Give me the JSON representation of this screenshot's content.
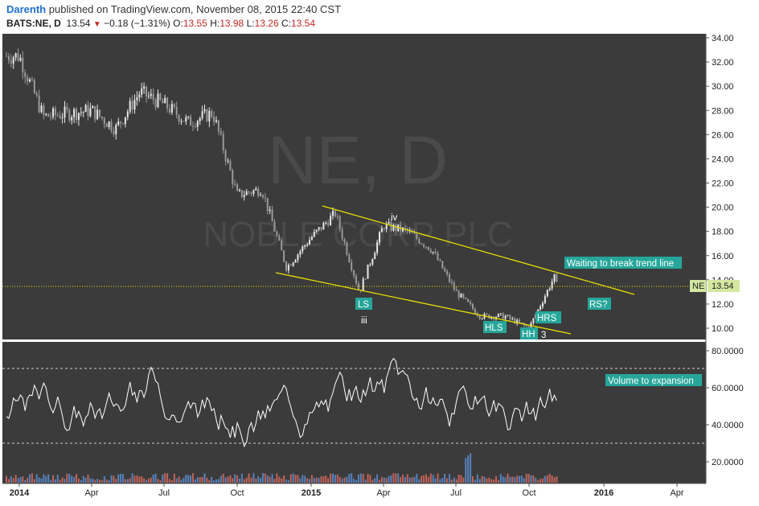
{
  "header": {
    "author": "Darenth",
    "published_text": "published on TradingView.com, November 08, 2015 22:40 CST",
    "symbol": "BATS:NE, D",
    "last": "13.54",
    "change": "−0.18 (−1.31%)",
    "o_label": "O:",
    "o_value": "13.55",
    "h_label": "H:",
    "h_value": "13.98",
    "l_label": "L:",
    "l_value": "13.26",
    "c_label": "C:",
    "c_value": "13.54"
  },
  "watermark": {
    "line1": "NE, D",
    "line2": "NOBLE CORP PLC"
  },
  "price_tag": {
    "symbol": "NE",
    "value": "13.54"
  },
  "colors": {
    "panel_bg": "#3b3b3b",
    "trend": "#e8e000",
    "price": "#d9d9d9",
    "label_bg": "#26a69a",
    "volume": "#5c8fd6"
  },
  "chart_data": [
    {
      "type": "candlestick",
      "title": "",
      "x_ticks": [
        "2014",
        "Apr",
        "Jul",
        "Oct",
        "2015",
        "Apr",
        "Jul",
        "Oct",
        "2016",
        "Apr"
      ],
      "y_ticks": [
        "34.00",
        "32.00",
        "30.00",
        "28.00",
        "26.00",
        "24.00",
        "22.00",
        "20.00",
        "18.00",
        "16.00",
        "14.00",
        "12.00",
        "10.00"
      ],
      "ylim": [
        9,
        34.3
      ],
      "last_price": 13.54,
      "approx_path": [
        {
          "x": "2014-01",
          "y": 32.5
        },
        {
          "x": "2014-02",
          "y": 27.5
        },
        {
          "x": "2014-04",
          "y": 28.0
        },
        {
          "x": "2014-05",
          "y": 26.5
        },
        {
          "x": "2014-06",
          "y": 29.5
        },
        {
          "x": "2014-07",
          "y": 28.5
        },
        {
          "x": "2014-08",
          "y": 27.0
        },
        {
          "x": "2014-09",
          "y": 27.8
        },
        {
          "x": "2014-10",
          "y": 21.0
        },
        {
          "x": "2014-11",
          "y": 21.5
        },
        {
          "x": "2014-12",
          "y": 15.0
        },
        {
          "x": "2015-01",
          "y": 17.5
        },
        {
          "x": "2015-02",
          "y": 19.5
        },
        {
          "x": "2015-03",
          "y": 13.0
        },
        {
          "x": "2015-04",
          "y": 18.5
        },
        {
          "x": "2015-05",
          "y": 18.0
        },
        {
          "x": "2015-06",
          "y": 16.5
        },
        {
          "x": "2015-07",
          "y": 13.0
        },
        {
          "x": "2015-08",
          "y": 11.0
        },
        {
          "x": "2015-09",
          "y": 11.0
        },
        {
          "x": "2015-10",
          "y": 10.0
        },
        {
          "x": "2015-11",
          "y": 14.2
        }
      ],
      "annotations": [
        "Waiting to break trend line",
        "LS",
        "HLS",
        "HH",
        "HRS",
        "RS?"
      ],
      "wave_labels": [
        "iv",
        "iii",
        "3"
      ]
    },
    {
      "type": "line",
      "title": "",
      "y_ticks": [
        "80.0000",
        "60.0000",
        "40.0000",
        "20.0000"
      ],
      "ylim": [
        10,
        84
      ],
      "levels": [
        70,
        30
      ],
      "annotation": "Volume to expansion"
    }
  ]
}
